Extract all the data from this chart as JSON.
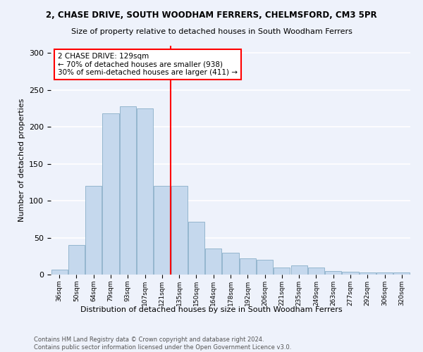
{
  "title_line1": "2, CHASE DRIVE, SOUTH WOODHAM FERRERS, CHELMSFORD, CM3 5PR",
  "title_line2": "Size of property relative to detached houses in South Woodham Ferrers",
  "xlabel": "Distribution of detached houses by size in South Woodham Ferrers",
  "ylabel": "Number of detached properties",
  "categories": [
    "36sqm",
    "50sqm",
    "64sqm",
    "79sqm",
    "93sqm",
    "107sqm",
    "121sqm",
    "135sqm",
    "150sqm",
    "164sqm",
    "178sqm",
    "192sqm",
    "206sqm",
    "221sqm",
    "235sqm",
    "249sqm",
    "263sqm",
    "277sqm",
    "292sqm",
    "306sqm",
    "320sqm"
  ],
  "values": [
    7,
    40,
    120,
    218,
    228,
    225,
    120,
    120,
    72,
    35,
    30,
    22,
    20,
    10,
    12,
    10,
    5,
    4,
    3,
    3,
    3
  ],
  "bar_color": "#c5d8ed",
  "bar_edgecolor": "#8aafc8",
  "annotation_text_line1": "2 CHASE DRIVE: 129sqm",
  "annotation_text_line2": "← 70% of detached houses are smaller (938)",
  "annotation_text_line3": "30% of semi-detached houses are larger (411) →",
  "annotation_box_facecolor": "white",
  "annotation_box_edgecolor": "red",
  "vline_color": "red",
  "ylim": [
    0,
    310
  ],
  "yticks": [
    0,
    50,
    100,
    150,
    200,
    250,
    300
  ],
  "footer_line1": "Contains HM Land Registry data © Crown copyright and database right 2024.",
  "footer_line2": "Contains public sector information licensed under the Open Government Licence v3.0.",
  "bg_color": "#eef2fb",
  "grid_color": "#ffffff",
  "bar_width": 0.95
}
